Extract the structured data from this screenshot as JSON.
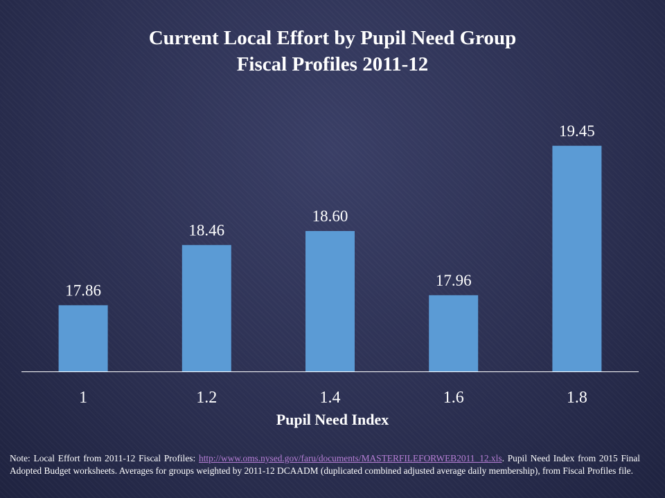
{
  "chart_data": {
    "type": "bar",
    "title": [
      "Current Local Effort by Pupil Need Group",
      "Fiscal Profiles 2011-12"
    ],
    "xlabel": "Pupil Need Index",
    "ylabel": "",
    "categories": [
      "1",
      "1.2",
      "1.4",
      "1.6",
      "1.8"
    ],
    "values": [
      17.86,
      18.46,
      18.6,
      17.96,
      19.45
    ],
    "data_labels": [
      "17.86",
      "18.46",
      "18.60",
      "17.96",
      "19.45"
    ],
    "ylim": [
      17.2,
      19.8
    ],
    "grid": false,
    "legend": "none",
    "bar_color": "#5b9bd5"
  },
  "note": {
    "prefix": "Note: Local Effort from 2011-12 Fiscal Profiles: ",
    "link_text": "http://www.oms.nysed.gov/faru/documents/MASTERFILEFORWEB2011_12.xls",
    "suffix": ". Pupil Need Index from 2015 Final Adopted  Budget worksheets.  Averages for groups weighted  by 2011-12 DCAADM  (duplicated combined adjusted  average daily membership),  from Fiscal Profiles file."
  }
}
